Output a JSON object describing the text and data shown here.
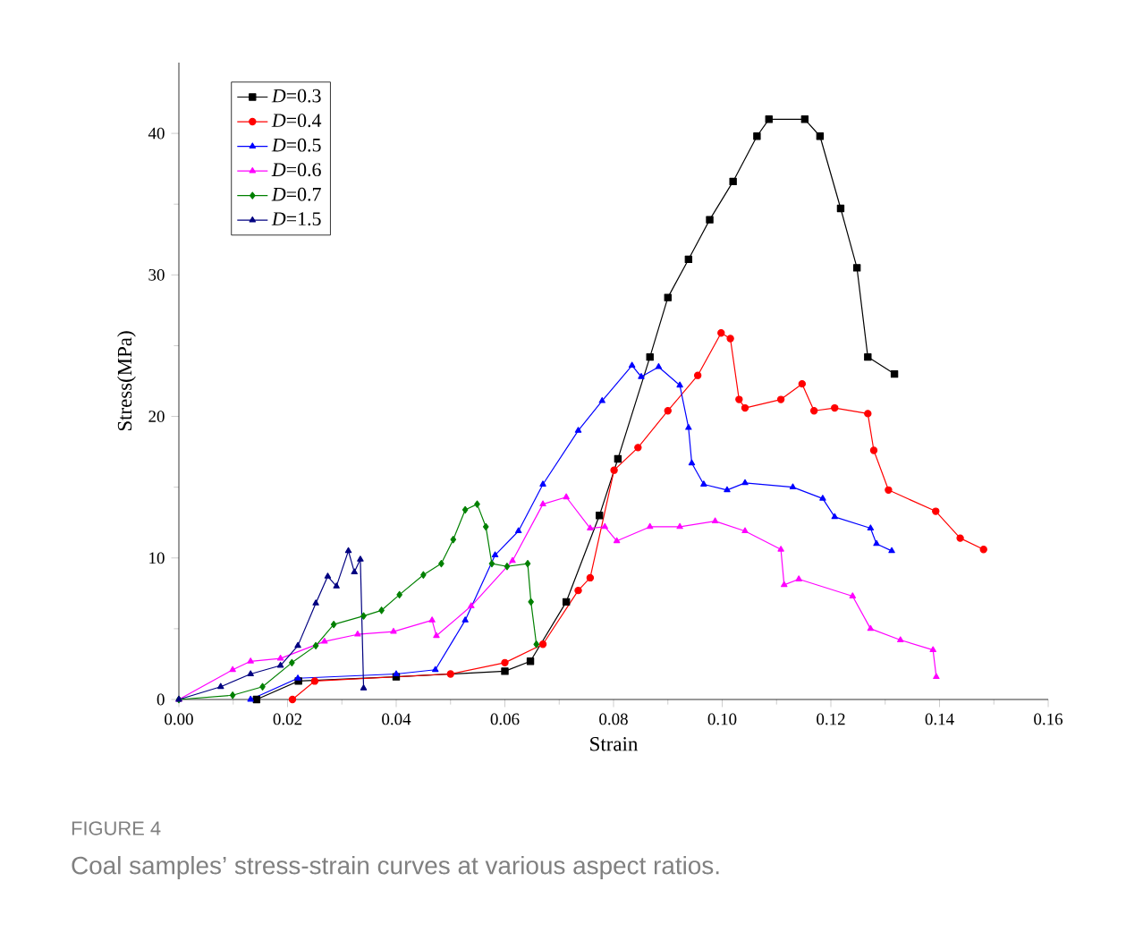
{
  "chart_data": {
    "type": "line",
    "xlabel": "Strain",
    "ylabel": "Stress(MPa)",
    "xlim": [
      0,
      0.16
    ],
    "xticks": [
      {
        "value": 0,
        "label": "0.00"
      },
      {
        "value": 0.02,
        "label": "0.02"
      },
      {
        "value": 0.04,
        "label": "0.04"
      },
      {
        "value": 0.06,
        "label": "0.06"
      },
      {
        "value": 0.08,
        "label": "0.08"
      },
      {
        "value": 0.1,
        "label": "0.10"
      },
      {
        "value": 0.12,
        "label": "0.12"
      },
      {
        "value": 0.14,
        "label": "0.14"
      },
      {
        "value": 0.16,
        "label": "0.16"
      }
    ],
    "ylim": [
      0,
      45
    ],
    "yticks": [
      0,
      10,
      20,
      30,
      40
    ],
    "legend": "top left",
    "grid": false,
    "series": [
      {
        "name": "*D*=0.3",
        "color": "#000000",
        "marker": "square",
        "x": [
          0.0143,
          0.022,
          0.04,
          0.06,
          0.0647,
          0.0713,
          0.0774,
          0.0808,
          0.0867,
          0.09,
          0.0938,
          0.0977,
          0.102,
          0.1064,
          0.1086,
          0.1152,
          0.118,
          0.1218,
          0.1248,
          0.1268,
          0.1317
        ],
        "values": [
          0,
          1.3,
          1.6,
          2.0,
          2.7,
          6.9,
          13.0,
          17.0,
          24.2,
          28.4,
          31.1,
          33.9,
          36.6,
          39.8,
          41.0,
          41.0,
          39.8,
          34.7,
          30.5,
          24.2,
          23.0
        ]
      },
      {
        "name": "*D*=0.4",
        "color": "#ff0000",
        "marker": "circle",
        "x": [
          0.0209,
          0.025,
          0.05,
          0.06,
          0.067,
          0.0735,
          0.0757,
          0.0801,
          0.0845,
          0.09,
          0.0955,
          0.0998,
          0.1015,
          0.1031,
          0.1042,
          0.1108,
          0.1147,
          0.1169,
          0.1207,
          0.1268,
          0.1279,
          0.1306,
          0.1393,
          0.1438,
          0.1481
        ],
        "values": [
          0,
          1.3,
          1.8,
          2.6,
          3.9,
          7.7,
          8.6,
          16.2,
          17.8,
          20.4,
          22.9,
          25.9,
          25.5,
          21.2,
          20.6,
          21.2,
          22.3,
          20.4,
          20.6,
          20.2,
          17.6,
          14.8,
          13.3,
          11.4,
          10.6
        ]
      },
      {
        "name": "*D*=0.5",
        "color": "#0000ff",
        "marker": "triangle",
        "x": [
          0.0132,
          0.0219,
          0.04,
          0.0472,
          0.0527,
          0.0582,
          0.0625,
          0.067,
          0.0735,
          0.0779,
          0.0834,
          0.0851,
          0.0883,
          0.0922,
          0.0938,
          0.0944,
          0.0966,
          0.1009,
          0.1042,
          0.113,
          0.1185,
          0.1207,
          0.1273,
          0.1284,
          0.1312
        ],
        "values": [
          0,
          1.5,
          1.8,
          2.1,
          5.6,
          10.2,
          11.9,
          15.2,
          19.0,
          21.1,
          23.6,
          22.8,
          23.5,
          22.2,
          19.2,
          16.7,
          15.2,
          14.8,
          15.3,
          15.0,
          14.2,
          12.9,
          12.1,
          11.0,
          10.5
        ]
      },
      {
        "name": "*D*=0.6",
        "color": "#ff00ff",
        "marker": "triangle",
        "x": [
          0,
          0.0099,
          0.0132,
          0.0187,
          0.0268,
          0.0329,
          0.0395,
          0.0466,
          0.0474,
          0.0538,
          0.0614,
          0.067,
          0.0713,
          0.0757,
          0.0784,
          0.0806,
          0.0867,
          0.0922,
          0.0987,
          0.1042,
          0.1108,
          0.1114,
          0.1141,
          0.124,
          0.1273,
          0.1328,
          0.1388,
          0.1394
        ],
        "values": [
          0,
          2.1,
          2.7,
          2.9,
          4.1,
          4.6,
          4.8,
          5.6,
          4.5,
          6.6,
          9.8,
          13.8,
          14.3,
          12.1,
          12.2,
          11.2,
          12.2,
          12.2,
          12.6,
          11.9,
          10.6,
          8.1,
          8.5,
          7.3,
          5.0,
          4.2,
          3.5,
          1.6
        ]
      },
      {
        "name": "*D*=0.7",
        "color": "#008000",
        "marker": "diamond",
        "x": [
          0,
          0.0099,
          0.0154,
          0.0208,
          0.0252,
          0.0285,
          0.034,
          0.0373,
          0.0406,
          0.045,
          0.0483,
          0.0505,
          0.0527,
          0.0549,
          0.0565,
          0.0576,
          0.0604,
          0.0642,
          0.0648,
          0.0658
        ],
        "values": [
          0,
          0.3,
          0.9,
          2.6,
          3.8,
          5.3,
          5.9,
          6.3,
          7.4,
          8.8,
          9.6,
          11.3,
          13.4,
          13.8,
          12.2,
          9.6,
          9.4,
          9.6,
          6.9,
          3.9
        ]
      },
      {
        "name": "*D*=1.5",
        "color": "#000080",
        "marker": "triangle",
        "x": [
          0,
          0.0077,
          0.0132,
          0.0187,
          0.0219,
          0.0252,
          0.0274,
          0.029,
          0.0312,
          0.0323,
          0.0334,
          0.034
        ],
        "values": [
          0,
          0.9,
          1.8,
          2.4,
          3.8,
          6.8,
          8.7,
          8.0,
          10.5,
          9.0,
          9.9,
          0.8
        ]
      }
    ],
    "annotations": [
      "FIGURE 4",
      "Coal samples’ stress-strain curves at various aspect ratios."
    ]
  }
}
